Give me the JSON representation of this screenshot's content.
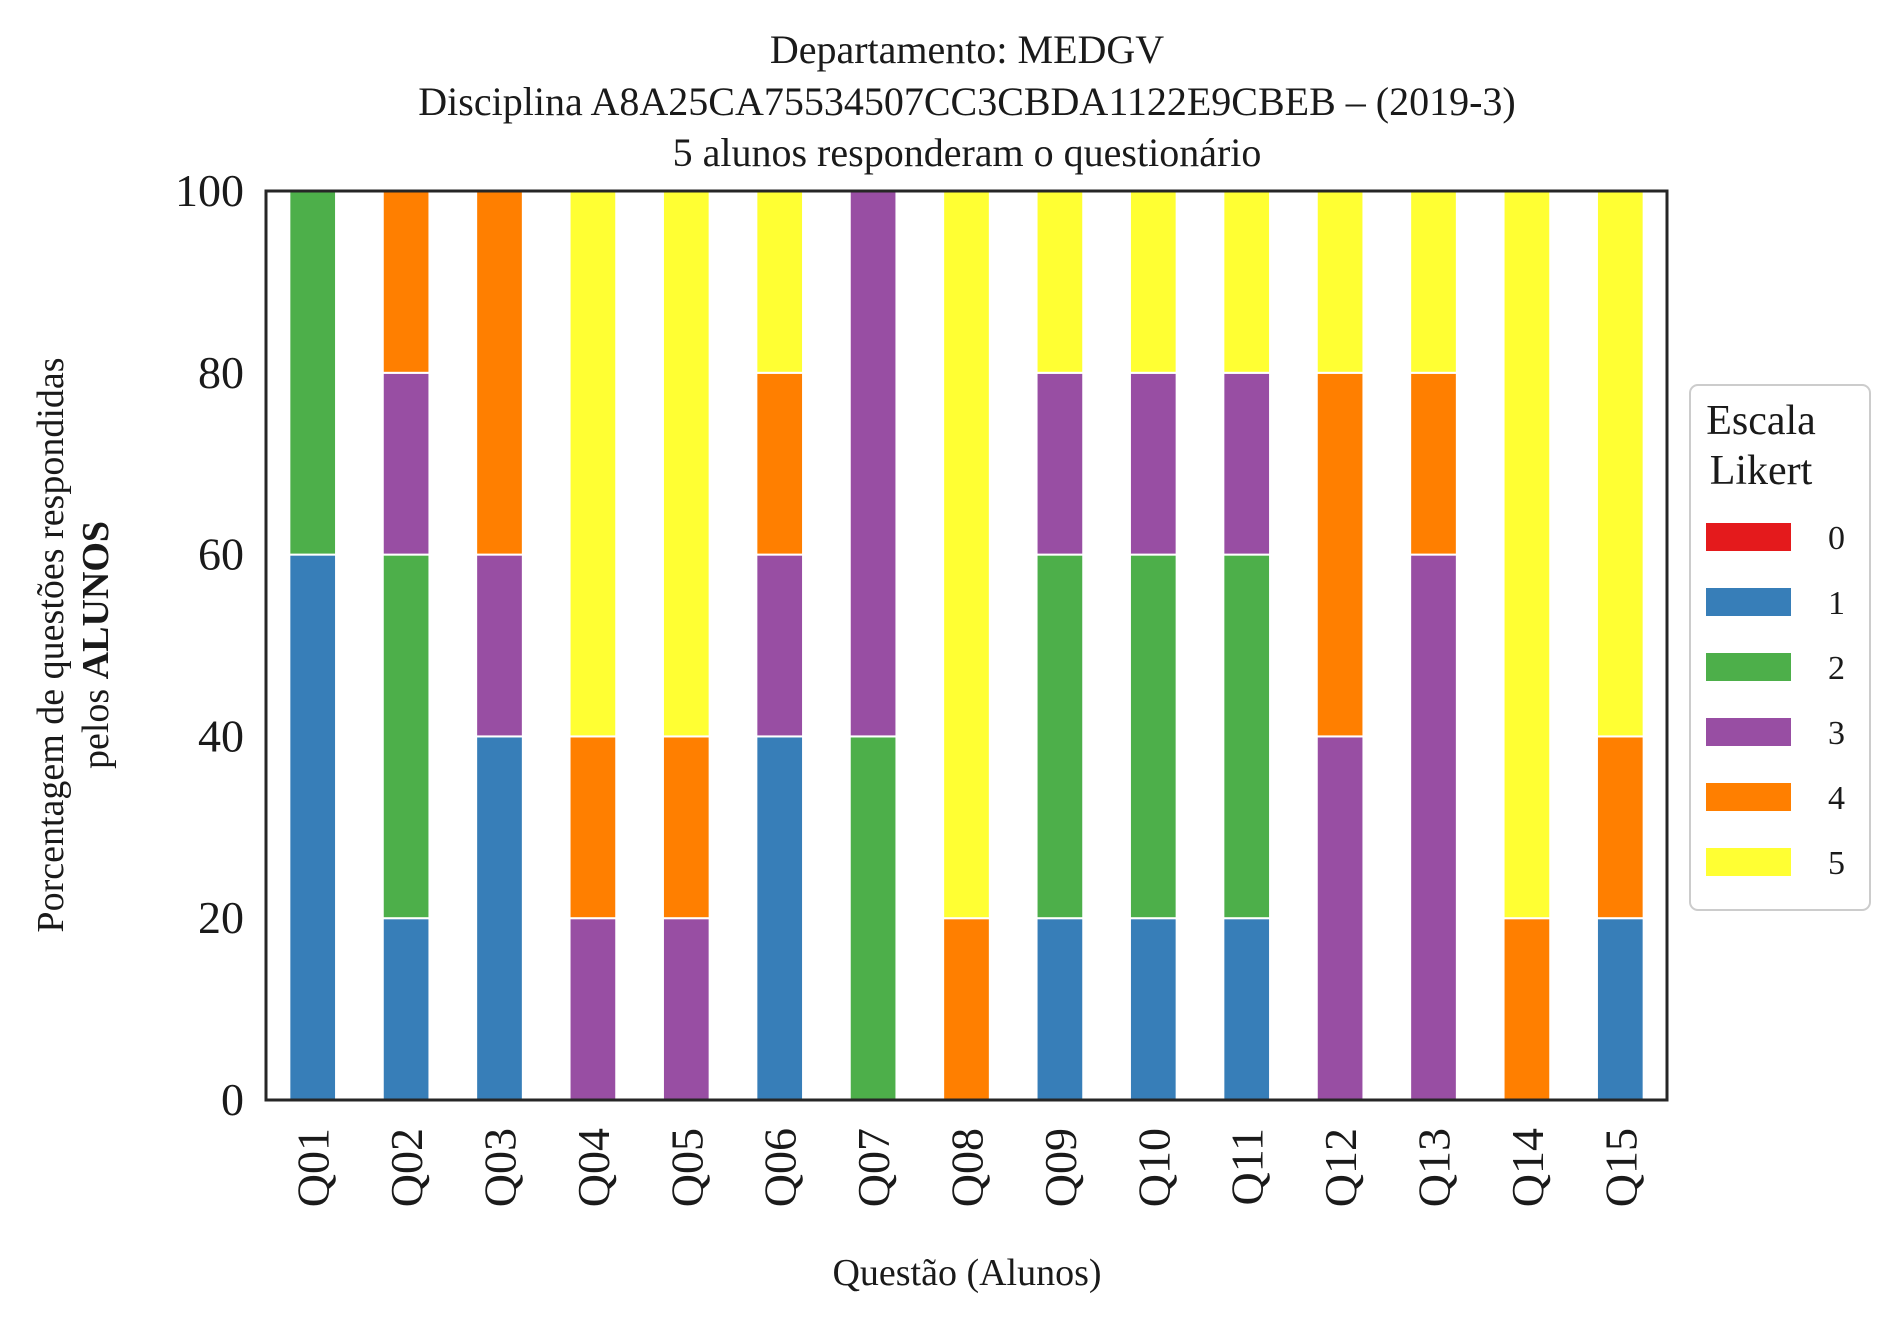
{
  "chart_data": {
    "type": "bar",
    "stacked": true,
    "title_lines": [
      "Departamento: MEDGV",
      "Disciplina A8A25CA75534507CC3CBDA1122E9CBEB – (2019-3)",
      "5 alunos responderam o questionário"
    ],
    "xlabel": "Questão (Alunos)",
    "ylabel_line1": "Porcentagem de questões respondidas",
    "ylabel_line2_prefix": "pelos ",
    "ylabel_line2_bold": "ALUNOS",
    "ylim": [
      0,
      100
    ],
    "yticks": [
      "0",
      "20",
      "40",
      "60",
      "80",
      "100"
    ],
    "categories": [
      "Q01",
      "Q02",
      "Q03",
      "Q04",
      "Q05",
      "Q06",
      "Q07",
      "Q08",
      "Q09",
      "Q10",
      "Q11",
      "Q12",
      "Q13",
      "Q14",
      "Q15"
    ],
    "legend_title_lines": [
      "Escala",
      "Likert"
    ],
    "legend_position": "center-right",
    "series": [
      {
        "name": "0",
        "color": "#e41a1c",
        "values": [
          0,
          0,
          0,
          0,
          0,
          0,
          0,
          0,
          0,
          0,
          0,
          0,
          0,
          0,
          0
        ]
      },
      {
        "name": "1",
        "color": "#377eb8",
        "values": [
          60,
          20,
          40,
          0,
          0,
          40,
          0,
          0,
          20,
          20,
          20,
          0,
          0,
          0,
          20
        ]
      },
      {
        "name": "2",
        "color": "#4daf4a",
        "values": [
          40,
          40,
          0,
          0,
          0,
          0,
          40,
          0,
          40,
          40,
          40,
          0,
          0,
          0,
          0
        ]
      },
      {
        "name": "3",
        "color": "#984ea3",
        "values": [
          0,
          20,
          20,
          20,
          20,
          20,
          60,
          0,
          20,
          20,
          20,
          40,
          60,
          0,
          0
        ]
      },
      {
        "name": "4",
        "color": "#ff7f00",
        "values": [
          0,
          20,
          40,
          20,
          20,
          20,
          0,
          20,
          0,
          0,
          0,
          40,
          20,
          20,
          20
        ]
      },
      {
        "name": "5",
        "color": "#ffff33",
        "values": [
          0,
          0,
          0,
          60,
          60,
          20,
          0,
          80,
          20,
          20,
          20,
          20,
          20,
          80,
          60
        ]
      }
    ]
  }
}
